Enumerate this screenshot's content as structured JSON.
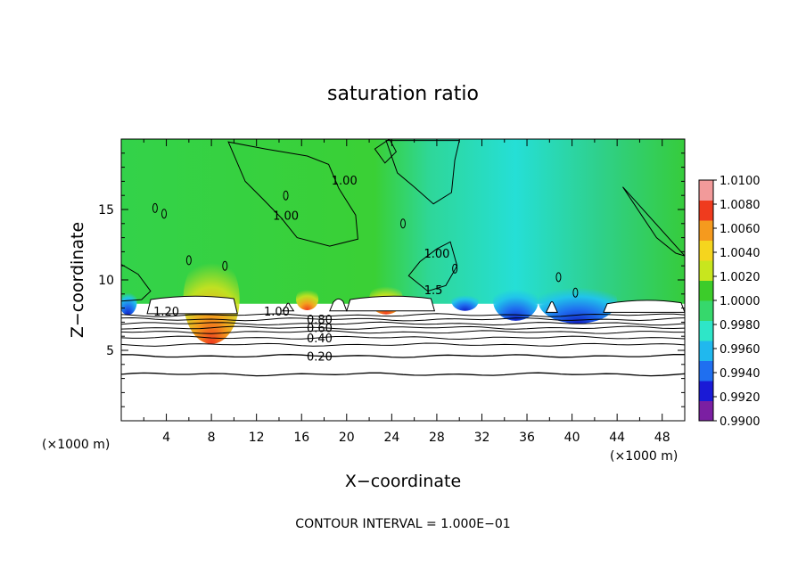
{
  "chart_data": {
    "type": "heatmap",
    "title": "saturation ratio",
    "xlabel": "X−coordinate",
    "ylabel": "Z−coordinate",
    "x_unit_left": "(×1000 m)",
    "x_unit_right": "(×1000 m)",
    "xlim": [
      0,
      50
    ],
    "ylim": [
      0,
      20
    ],
    "x_ticks": [
      4,
      8,
      12,
      16,
      20,
      24,
      28,
      32,
      36,
      40,
      44,
      48
    ],
    "y_ticks": [
      5,
      10,
      15
    ],
    "contour_interval_text": "CONTOUR INTERVAL = 1.000E−01",
    "colorbar": {
      "min": 0.99,
      "max": 1.01,
      "tick_labels": [
        "1.0100",
        "1.0080",
        "1.0060",
        "1.0040",
        "1.0020",
        "1.0000",
        "0.9980",
        "0.9960",
        "0.9940",
        "0.9920",
        "0.9900"
      ],
      "colors": [
        "#7b1fa2",
        "#1a1ad6",
        "#1f6ff0",
        "#20b8ee",
        "#2ee6c8",
        "#36d86c",
        "#3ccc2a",
        "#c8e61e",
        "#f5d51e",
        "#f59a1e",
        "#ef3b1e",
        "#f29a9a"
      ]
    },
    "contour_labels": [
      {
        "text": "1.20",
        "x": 4.0,
        "z": 7.8
      },
      {
        "text": "1.00",
        "x": 13.8,
        "z": 7.8
      },
      {
        "text": "0.80",
        "x": 17.6,
        "z": 7.2
      },
      {
        "text": "0.60",
        "x": 17.6,
        "z": 6.6
      },
      {
        "text": "0.40",
        "x": 17.6,
        "z": 5.9
      },
      {
        "text": "0.20",
        "x": 17.6,
        "z": 4.6
      },
      {
        "text": "1.00",
        "x": 19.8,
        "z": 17.1
      },
      {
        "text": "1.00",
        "x": 14.6,
        "z": 14.6
      },
      {
        "text": "1.00",
        "x": 28.0,
        "z": 11.9
      },
      {
        "text": "1.5",
        "x": 27.7,
        "z": 9.3
      }
    ],
    "cloud_regions": [
      {
        "x0": 2.3,
        "x1": 10.3,
        "z_top": 8.8,
        "z_bottom": 7.6
      },
      {
        "x0": 14.3,
        "x1": 15.3,
        "z_top": 8.3,
        "z_bottom": 7.8
      },
      {
        "x0": 18.5,
        "x1": 20.0,
        "z_top": 8.6,
        "z_bottom": 7.8
      },
      {
        "x0": 20.0,
        "x1": 27.8,
        "z_top": 8.8,
        "z_bottom": 7.8
      },
      {
        "x0": 37.7,
        "x1": 38.7,
        "z_top": 8.4,
        "z_bottom": 7.7
      },
      {
        "x0": 42.8,
        "x1": 50.0,
        "z_top": 8.5,
        "z_bottom": 7.7
      }
    ],
    "grid": false
  }
}
